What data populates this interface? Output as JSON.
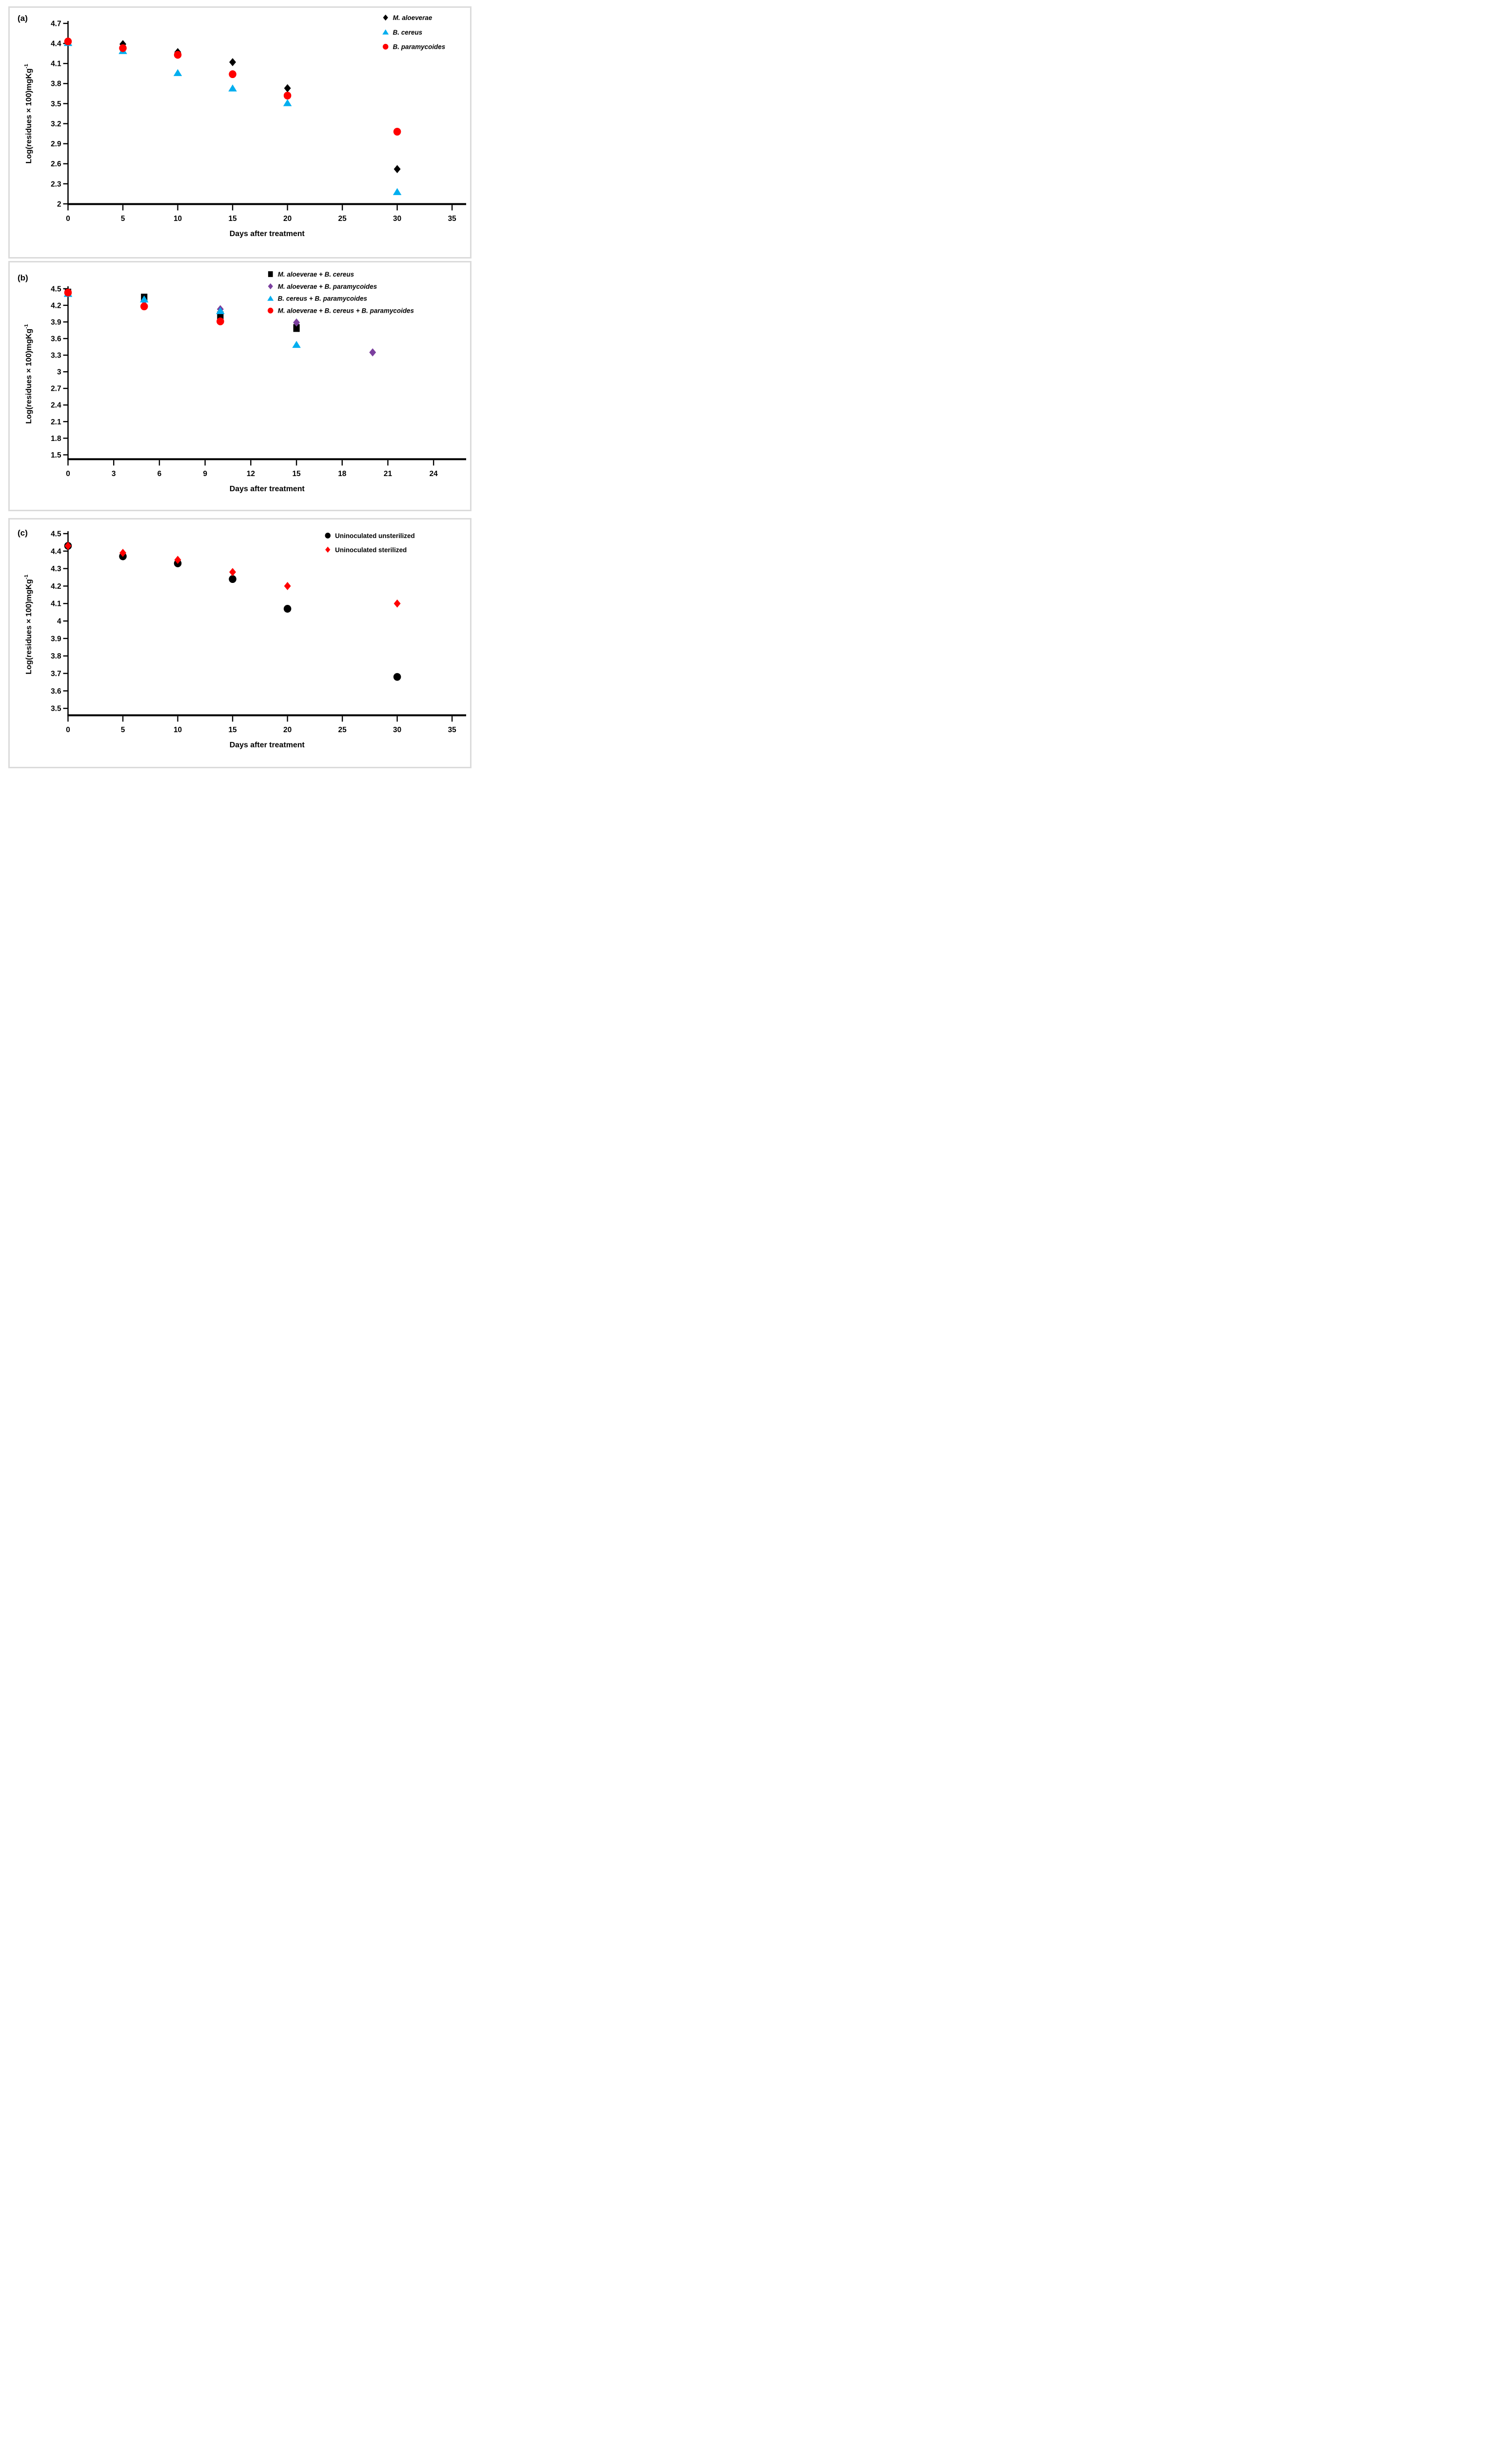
{
  "figure": {
    "panel_labels": [
      "(a)",
      "(b)",
      "(c)"
    ],
    "xlabel": "Days after treatment",
    "ylabel_main": "Log(residues × 100)mgKg",
    "ylabel_sup": "-1"
  },
  "colors": {
    "black": "#000000",
    "blue": "#00AEEF",
    "red": "#FF0000",
    "purple": "#7B3F9E",
    "panel_border": "#DBDBDB"
  },
  "chart_data": [
    {
      "type": "scatter",
      "panel_label": "(a)",
      "xlabel": "Days after treatment",
      "ylabel": {
        "main": "Log(residues × 100)mgKg",
        "sup": "-1"
      },
      "xlim": [
        0,
        35
      ],
      "xticks": [
        "0",
        "5",
        "10",
        "15",
        "20",
        "25",
        "30",
        "35"
      ],
      "ylim": [
        2,
        4.7
      ],
      "yticks": [
        "4.7",
        "4.4",
        "4.1",
        "3.8",
        "3.5",
        "3.2",
        "2.9",
        "2.6",
        "2.3",
        "2"
      ],
      "grid": false,
      "legend_position": "top-right-inside",
      "legend_italic": true,
      "x": [
        0,
        5,
        10,
        15,
        20,
        30
      ],
      "series": [
        {
          "name": "M. aloeverae",
          "marker": "diamond",
          "color": "#000000",
          "values": [
            4.42,
            4.39,
            4.27,
            4.12,
            3.73,
            2.52
          ]
        },
        {
          "name": "B. cereus",
          "marker": "triangle",
          "color": "#00AEEF",
          "values": [
            4.41,
            4.29,
            3.96,
            3.73,
            3.51,
            2.18
          ]
        },
        {
          "name": "B. paramycoides",
          "marker": "circle",
          "color": "#FF0000",
          "values": [
            4.43,
            4.33,
            4.23,
            3.94,
            3.62,
            3.08
          ]
        }
      ]
    },
    {
      "type": "scatter",
      "panel_label": "(b)",
      "xlabel": "Days after treatment",
      "ylabel": {
        "main": "Log(residues × 100)mgKg",
        "sup": "-1"
      },
      "xlim": [
        0,
        24
      ],
      "xticks": [
        "0",
        "3",
        "6",
        "9",
        "12",
        "15",
        "18",
        "21",
        "24"
      ],
      "ylim": [
        1.5,
        4.5
      ],
      "yticks": [
        "4.5",
        "4.2",
        "3.9",
        "3.6",
        "3.3",
        "3",
        "2.7",
        "2.4",
        "2.1",
        "1.8",
        "1.5"
      ],
      "grid": false,
      "legend_position": "top-right-inside",
      "legend_italic": true,
      "x": [
        0,
        5,
        10,
        15,
        20
      ],
      "series": [
        {
          "name": "M. aloeverae + B. cereus",
          "marker": "square",
          "color": "#000000",
          "values": [
            4.43,
            4.34,
            4.02,
            3.79,
            null
          ]
        },
        {
          "name": "M. aloeverae + B. paramycoides",
          "marker": "diamond",
          "color": "#7B3F9E",
          "values": [
            4.42,
            4.28,
            4.13,
            3.89,
            3.35
          ]
        },
        {
          "name": "B. cereus + B. paramycoides",
          "marker": "triangle",
          "color": "#00AEEF",
          "values": [
            4.41,
            4.31,
            4.1,
            3.49,
            null
          ]
        },
        {
          "name": "M. aloeverae + B. cereus + B. paramycoides",
          "marker": "circle",
          "color": "#FF0000",
          "values": [
            4.43,
            4.18,
            3.91,
            null,
            null
          ]
        }
      ]
    },
    {
      "type": "scatter",
      "panel_label": "(c)",
      "xlabel": "Days after treatment",
      "ylabel": {
        "main": "Log(residues × 100)mgKg",
        "sup": "-1"
      },
      "xlim": [
        0,
        35
      ],
      "xticks": [
        "0",
        "5",
        "10",
        "15",
        "20",
        "25",
        "30",
        "35"
      ],
      "ylim": [
        3.5,
        4.5
      ],
      "yticks": [
        "4.5",
        "4.4",
        "4.3",
        "4.2",
        "4.1",
        "4",
        "3.9",
        "3.8",
        "3.7",
        "3.6",
        "3.5"
      ],
      "grid": false,
      "legend_position": "top-right-inside",
      "legend_italic": false,
      "x": [
        0,
        5,
        10,
        15,
        20,
        30
      ],
      "series": [
        {
          "name": "Uninoculated unsterilized",
          "marker": "circle",
          "color": "#000000",
          "values": [
            4.43,
            4.37,
            4.33,
            4.24,
            4.07,
            3.68
          ]
        },
        {
          "name": "Uninoculated sterilized",
          "marker": "diamond",
          "color": "#FF0000",
          "values": [
            4.43,
            4.39,
            4.35,
            4.28,
            4.2,
            4.1
          ]
        }
      ]
    }
  ]
}
